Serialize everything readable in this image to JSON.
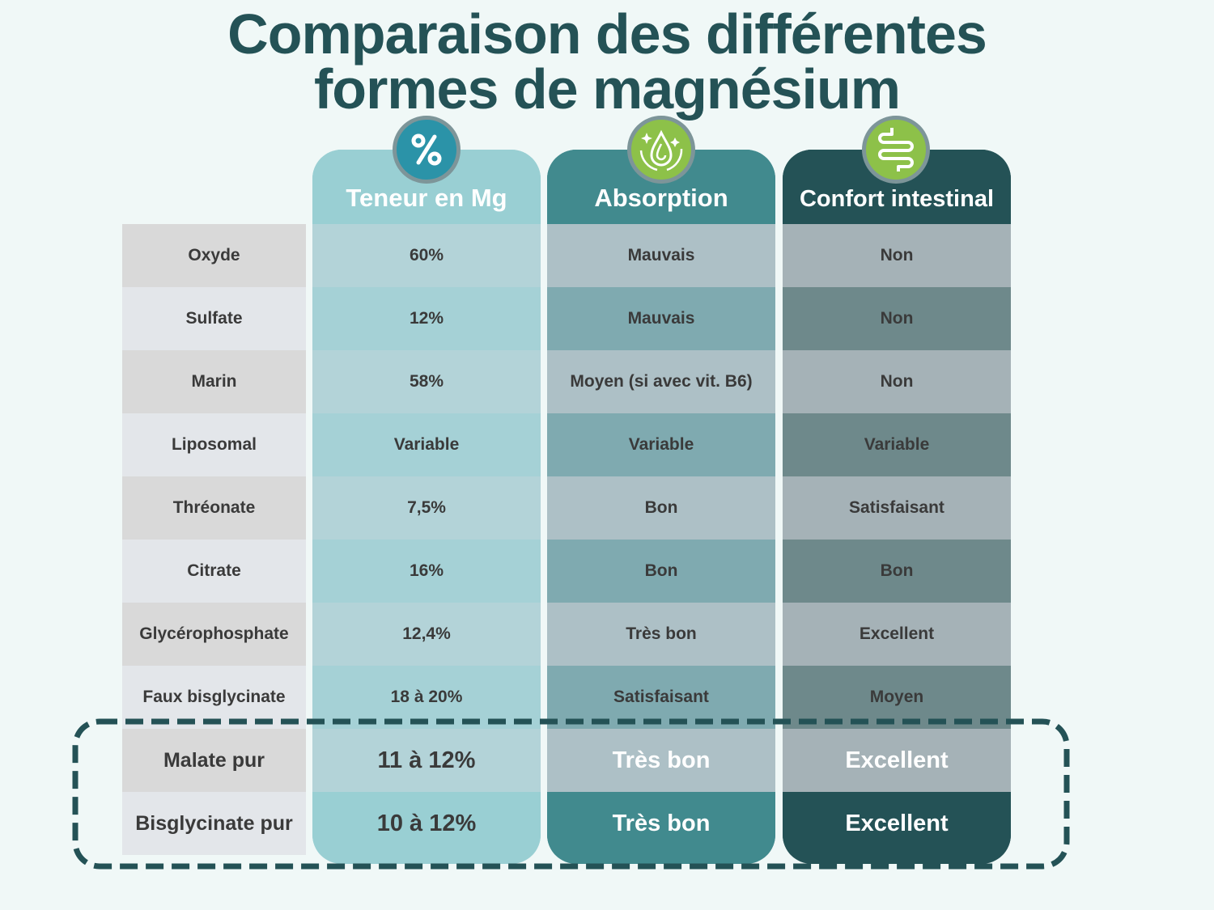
{
  "title": {
    "line1": "Comparaison des différentes",
    "line2": "formes de magnésium"
  },
  "columns": [
    {
      "label": "Teneur en Mg",
      "icon": "percent-icon",
      "header_color": "#99cfd3",
      "row_colors": [
        "#b3d3d8",
        "#a5d1d6"
      ],
      "last_color": "#99cfd3"
    },
    {
      "label": "Absorption",
      "icon": "water-drop-sparkle-icon",
      "header_color": "#418a8e",
      "row_colors": [
        "#adc0c6",
        "#7faab0"
      ],
      "last_color": "#418a8e"
    },
    {
      "label": "Confort intestinal",
      "icon": "intestine-icon",
      "header_color": "#245256",
      "row_colors": [
        "#a5b2b7",
        "#6e898b"
      ],
      "last_color": "#245256"
    }
  ],
  "rows": [
    {
      "name": "Oxyde",
      "values": [
        "60%",
        "Mauvais",
        "Non"
      ]
    },
    {
      "name": "Sulfate",
      "values": [
        "12%",
        "Mauvais",
        "Non"
      ]
    },
    {
      "name": "Marin",
      "values": [
        "58%",
        "Moyen (si avec vit. B6)",
        "Non"
      ]
    },
    {
      "name": "Liposomal",
      "values": [
        "Variable",
        "Variable",
        "Variable"
      ]
    },
    {
      "name": "Thréonate",
      "values": [
        "7,5%",
        "Bon",
        "Satisfaisant"
      ]
    },
    {
      "name": "Citrate",
      "values": [
        "16%",
        "Bon",
        "Bon"
      ]
    },
    {
      "name": "Glycérophosphate",
      "values": [
        "12,4%",
        "Très bon",
        "Excellent"
      ]
    },
    {
      "name": "Faux bisglycinate",
      "values": [
        "18 à 20%",
        "Satisfaisant",
        "Moyen"
      ]
    },
    {
      "name": "Malate pur",
      "values": [
        "11 à 12%",
        "Très bon",
        "Excellent"
      ],
      "highlight": true
    },
    {
      "name": "Bisglycinate pur",
      "values": [
        "10 à 12%",
        "Très bon",
        "Excellent"
      ],
      "highlight": true
    }
  ],
  "colors": {
    "background": "#f0f8f7",
    "title": "#245256",
    "highlight_border": "#245256",
    "icon_green": "#8dc149",
    "icon_teal": "#2b93a8"
  }
}
